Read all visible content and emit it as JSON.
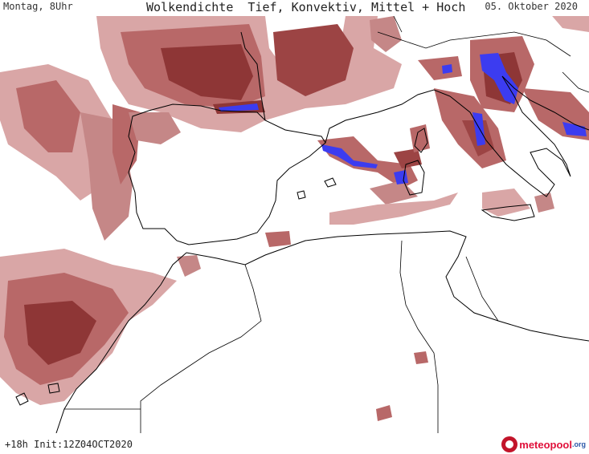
{
  "header": {
    "valid_time": "Montag, 8Uhr",
    "title": "Wolkendichte  Tief, Konvektiv, Mittel + Hoch",
    "date": "05. Oktober 2020"
  },
  "footer": {
    "init_info": "+18h Init:12Z04OCT2020",
    "brand_name": "meteopool",
    "brand_tld": ".org"
  },
  "colors": {
    "cloud_light": "#d9a6a6",
    "cloud_medium": "#b86868",
    "cloud_dark": "#8e3636",
    "convective": "#3c3cf0",
    "coastline": "#000000"
  }
}
